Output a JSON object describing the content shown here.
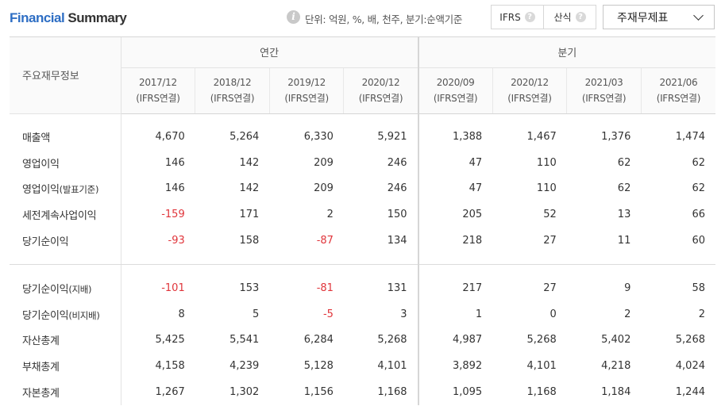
{
  "header": {
    "title_part1": "Financial",
    "title_part2": " Summary",
    "info_icon_glyph": "i",
    "unit_text": "단위: 억원, %, 배, 천주, 분기:순액기준",
    "toggle_ifrs_label": "IFRS",
    "toggle_calc_label": "산식",
    "help_glyph": "?",
    "select_value": "주재무제표"
  },
  "table": {
    "row_header": "주요재무정보",
    "group_annual": "연간",
    "group_quarter": "분기",
    "periods": [
      {
        "date": "2017/12",
        "basis": "(IFRS연결)"
      },
      {
        "date": "2018/12",
        "basis": "(IFRS연결)"
      },
      {
        "date": "2019/12",
        "basis": "(IFRS연결)"
      },
      {
        "date": "2020/12",
        "basis": "(IFRS연결)"
      },
      {
        "date": "2020/09",
        "basis": "(IFRS연결)"
      },
      {
        "date": "2020/12",
        "basis": "(IFRS연결)"
      },
      {
        "date": "2021/03",
        "basis": "(IFRS연결)"
      },
      {
        "date": "2021/06",
        "basis": "(IFRS연결)"
      }
    ],
    "rows_group1": [
      {
        "label": "매출액",
        "suffix": "",
        "values": [
          "4,670",
          "5,264",
          "6,330",
          "5,921",
          "1,388",
          "1,467",
          "1,376",
          "1,474"
        ]
      },
      {
        "label": "영업이익",
        "suffix": "",
        "values": [
          "146",
          "142",
          "209",
          "246",
          "47",
          "110",
          "62",
          "62"
        ]
      },
      {
        "label": "영업이익",
        "suffix": "(발표기준)",
        "values": [
          "146",
          "142",
          "209",
          "246",
          "47",
          "110",
          "62",
          "62"
        ]
      },
      {
        "label": "세전계속사업이익",
        "suffix": "",
        "values": [
          "-159",
          "171",
          "2",
          "150",
          "205",
          "52",
          "13",
          "66"
        ]
      },
      {
        "label": "당기순이익",
        "suffix": "",
        "values": [
          "-93",
          "158",
          "-87",
          "134",
          "218",
          "27",
          "11",
          "60"
        ]
      }
    ],
    "rows_group2": [
      {
        "label": "당기순이익",
        "suffix": "(지배)",
        "values": [
          "-101",
          "153",
          "-81",
          "131",
          "217",
          "27",
          "9",
          "58"
        ]
      },
      {
        "label": "당기순이익",
        "suffix": "(비지배)",
        "values": [
          "8",
          "5",
          "-5",
          "3",
          "1",
          "0",
          "2",
          "2"
        ]
      },
      {
        "label": "자산총계",
        "suffix": "",
        "values": [
          "5,425",
          "5,541",
          "6,284",
          "5,268",
          "4,987",
          "5,268",
          "5,402",
          "5,268"
        ]
      },
      {
        "label": "부채총계",
        "suffix": "",
        "values": [
          "4,158",
          "4,239",
          "5,128",
          "4,101",
          "3,892",
          "4,101",
          "4,218",
          "4,024"
        ]
      },
      {
        "label": "자본총계",
        "suffix": "",
        "values": [
          "1,267",
          "1,302",
          "1,156",
          "1,168",
          "1,095",
          "1,168",
          "1,184",
          "1,244"
        ]
      }
    ],
    "negative_color": "#e0353b",
    "title_accent_color": "#2e6ec4"
  }
}
